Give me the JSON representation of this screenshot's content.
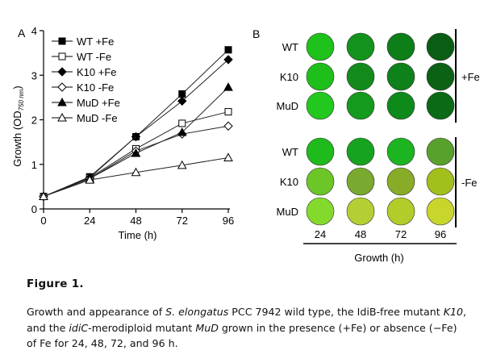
{
  "chart_data": [
    {
      "panel_label": "A",
      "type": "line",
      "x": [
        0,
        24,
        48,
        72,
        96
      ],
      "xlabel": "Time (h)",
      "ylabel": "Growth (OD",
      "ylabel_sub": "750 nm",
      "ylabel_close": ")",
      "xlim": [
        0,
        96
      ],
      "ylim": [
        0,
        4
      ],
      "xticks": [
        "0",
        "24",
        "48",
        "72",
        "96"
      ],
      "yticks": [
        "0",
        "1",
        "2",
        "3",
        "4"
      ],
      "grid": false,
      "legend_position": "top-left",
      "series": [
        {
          "name": "WT +Fe",
          "marker": "square-filled",
          "values": [
            0.28,
            0.72,
            1.62,
            2.58,
            3.57
          ]
        },
        {
          "name": "WT -Fe",
          "marker": "square-open",
          "values": [
            0.28,
            0.7,
            1.35,
            1.92,
            2.18
          ]
        },
        {
          "name": "K10 +Fe",
          "marker": "diamond-filled",
          "values": [
            0.28,
            0.7,
            1.62,
            2.42,
            3.35
          ]
        },
        {
          "name": "K10 -Fe",
          "marker": "diamond-open",
          "values": [
            0.28,
            0.68,
            1.3,
            1.68,
            1.86
          ]
        },
        {
          "name": "MuD +Fe",
          "marker": "triangle-filled",
          "values": [
            0.28,
            0.68,
            1.25,
            1.72,
            2.73
          ]
        },
        {
          "name": "MuD -Fe",
          "marker": "triangle-open",
          "values": [
            0.28,
            0.65,
            0.82,
            0.98,
            1.15
          ]
        }
      ]
    },
    {
      "panel_label": "B",
      "type": "heatmap",
      "columns": [
        "24",
        "48",
        "72",
        "96"
      ],
      "xlabel": "Growth (h)",
      "groups": [
        {
          "label": "+Fe",
          "rows": [
            {
              "strain": "WT",
              "colors": [
                "#1fc21a",
                "#13931c",
                "#0d7f19",
                "#0a5e13"
              ]
            },
            {
              "strain": "K10",
              "colors": [
                "#1fbf1b",
                "#128b1c",
                "#0f811a",
                "#0b6214"
              ]
            },
            {
              "strain": "MuD",
              "colors": [
                "#22c81e",
                "#149a1d",
                "#0e8a1a",
                "#0b6a16"
              ]
            }
          ]
        },
        {
          "label": "-Fe",
          "rows": [
            {
              "strain": "WT",
              "colors": [
                "#1fba1b",
                "#16a31f",
                "#1db422",
                "#58a12d"
              ]
            },
            {
              "strain": "K10",
              "colors": [
                "#6cc627",
                "#79a92f",
                "#89ac28",
                "#a2c01c"
              ]
            },
            {
              "strain": "MuD",
              "colors": [
                "#84d92d",
                "#b3cf33",
                "#b2cc2a",
                "#c8d52a"
              ]
            }
          ]
        }
      ]
    }
  ],
  "caption": {
    "title": "Figure 1.",
    "s1": "Growth and appearance of ",
    "s2": "S. elongatus",
    "s3": " PCC 7942 wild type, the IdiB-free mutant ",
    "s4": "K10",
    "s5": ", and the ",
    "s6": "idiC",
    "s7": "-merodiploid mutant ",
    "s8": "MuD",
    "s9": " grown in the presence (+Fe) or absence (−Fe) of Fe for 24, 48, 72, and 96 h."
  }
}
